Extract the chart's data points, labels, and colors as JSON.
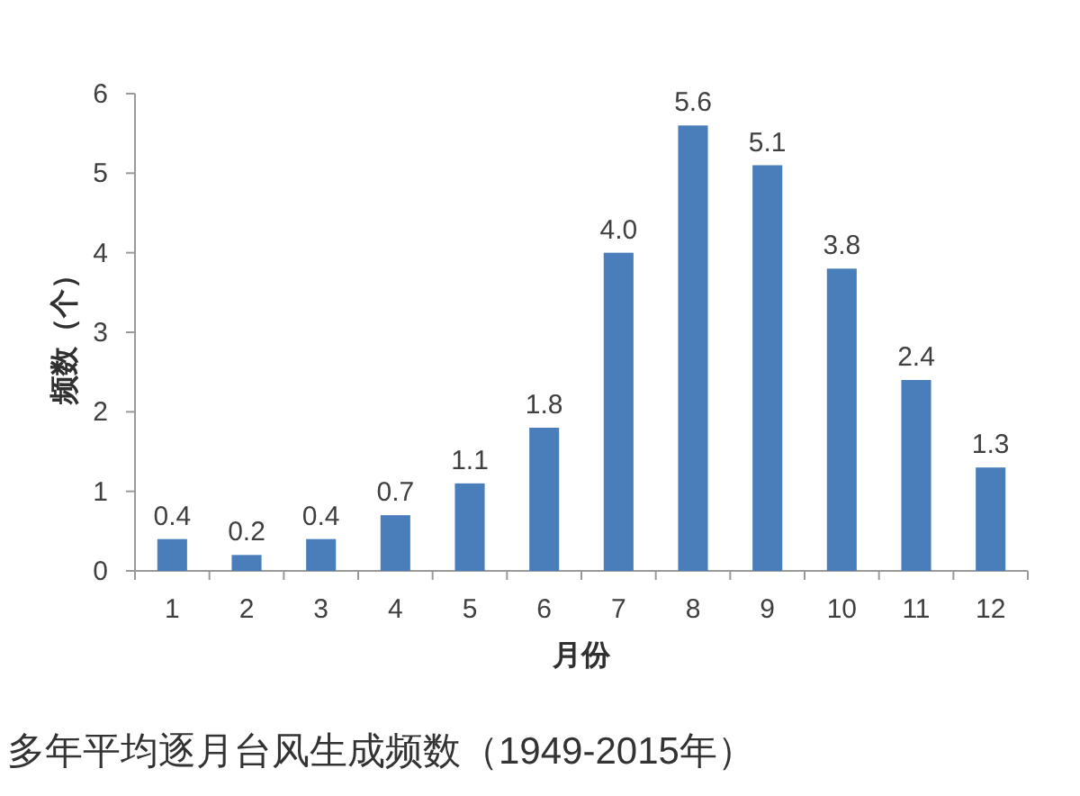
{
  "chart_data": {
    "type": "bar",
    "categories": [
      "1",
      "2",
      "3",
      "4",
      "5",
      "6",
      "7",
      "8",
      "9",
      "10",
      "11",
      "12"
    ],
    "values": [
      0.4,
      0.2,
      0.4,
      0.7,
      1.1,
      1.8,
      4.0,
      5.6,
      5.1,
      3.8,
      2.4,
      1.3
    ],
    "value_labels": [
      "0.4",
      "0.2",
      "0.4",
      "0.7",
      "1.1",
      "1.8",
      "4.0",
      "5.6",
      "5.1",
      "3.8",
      "2.4",
      "1.3"
    ],
    "color": "#4a7ebb",
    "xlabel": "月份",
    "ylabel": "频数（个）",
    "ylim": [
      0,
      6
    ],
    "yticks": [
      0,
      1,
      2,
      3,
      4,
      5,
      6
    ],
    "annotations": [
      "多年平均逐月台风生成频数（1949-2015年）"
    ]
  }
}
